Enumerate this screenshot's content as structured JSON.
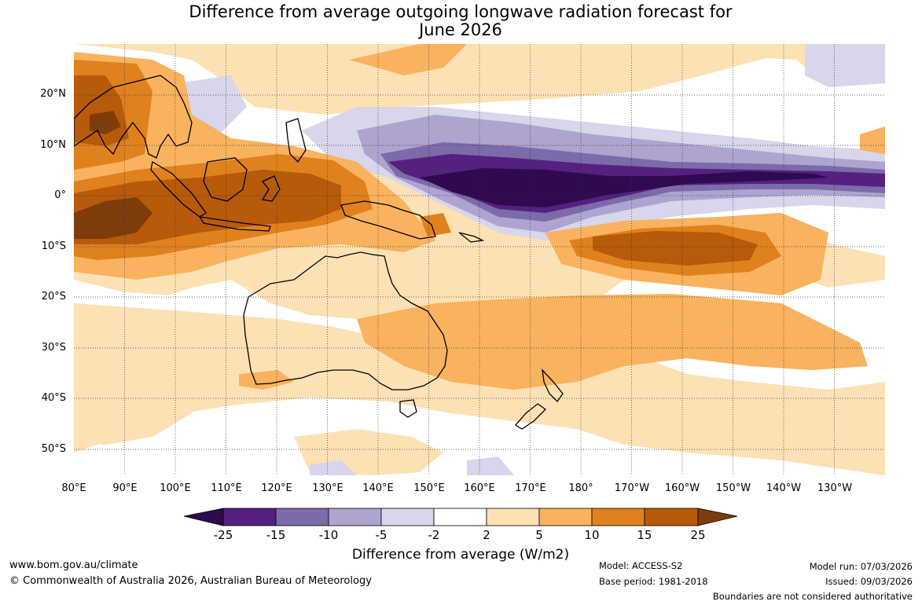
{
  "title": {
    "line1": "Difference from average outgoing longwave radiation forecast for",
    "line2": "June 2026"
  },
  "map": {
    "lat_labels": [
      "20°N",
      "10°N",
      "0°",
      "10°S",
      "20°S",
      "30°S",
      "40°S",
      "50°S"
    ],
    "lon_labels": [
      "80°E",
      "90°E",
      "100°E",
      "110°E",
      "120°E",
      "130°E",
      "140°E",
      "150°E",
      "160°E",
      "170°E",
      "180°",
      "170°W",
      "160°W",
      "150°W",
      "140°W",
      "130°W"
    ]
  },
  "legend": {
    "title": "Difference from average (W/m2)",
    "ticks": [
      "-25",
      "-15",
      "-10",
      "-5",
      "-2",
      "2",
      "5",
      "10",
      "15",
      "25"
    ],
    "colors": [
      "#2e0a4f",
      "#55207f",
      "#7c6aa9",
      "#aea4cf",
      "#d7d6ea",
      "#ffffff",
      "#fde1b4",
      "#f9b25e",
      "#e0811d",
      "#b75a09",
      "#7e3c0a"
    ]
  },
  "footer": {
    "website": "www.bom.gov.au/climate",
    "copyright": "© Commonwealth of Australia 2026, Australian Bureau of Meteorology",
    "model": "Model: ACCESS-S2",
    "base_period": "Base period: 1981-2018",
    "model_run": "Model run: 07/03/2026",
    "issued": "Issued: 09/03/2026",
    "disclaimer": "Boundaries are not considered authoritative"
  }
}
